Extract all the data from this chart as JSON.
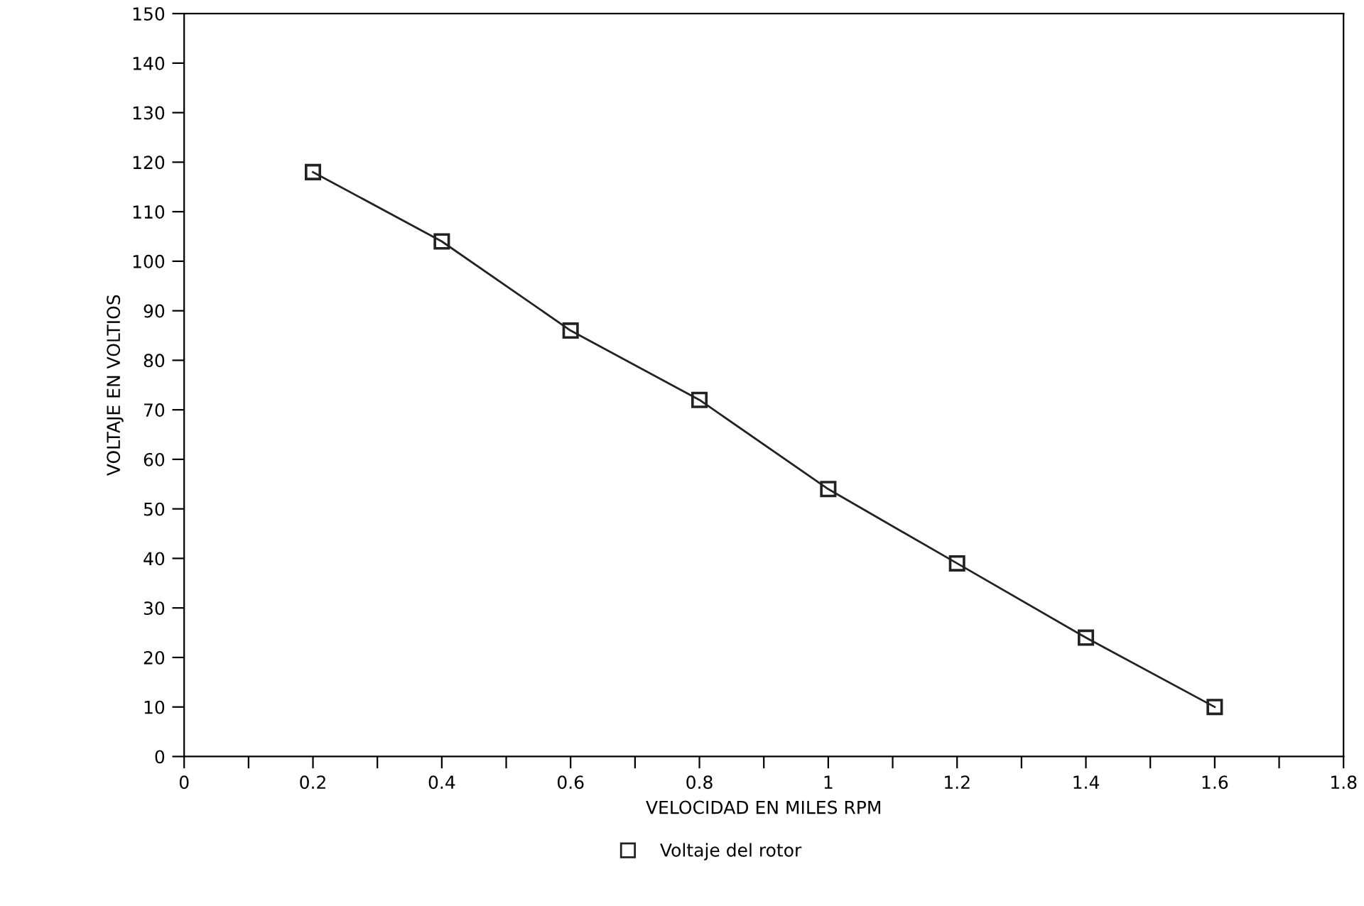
{
  "chart_data": {
    "type": "line",
    "xlabel": "VELOCIDAD EN MILES RPM",
    "ylabel": "VOLTAJE EN VOLTIOS",
    "x": [
      0.2,
      0.4,
      0.6,
      0.8,
      1.0,
      1.2,
      1.4,
      1.6
    ],
    "series": [
      {
        "name": "Voltaje del rotor",
        "color": "#222222",
        "values": [
          118,
          104,
          86,
          72,
          54,
          39,
          24,
          10
        ]
      }
    ],
    "xlim": [
      0,
      1.8
    ],
    "xticks": [
      0,
      {
        "value": 0.1,
        "label": null
      },
      0.2,
      {
        "value": 0.3,
        "label": null
      },
      0.4,
      {
        "value": 0.5,
        "label": null
      },
      0.6,
      {
        "value": 0.7,
        "label": null
      },
      0.8,
      {
        "value": 0.9,
        "label": null
      },
      1,
      {
        "value": 1.1,
        "label": null
      },
      1.2,
      {
        "value": 1.3,
        "label": null
      },
      1.4,
      {
        "value": 1.5,
        "label": null
      },
      1.6,
      {
        "value": 1.7,
        "label": null
      },
      1.8
    ],
    "ylim": [
      0,
      150
    ],
    "yticks": [
      0,
      10,
      20,
      30,
      40,
      50,
      60,
      70,
      80,
      90,
      100,
      110,
      120,
      130,
      140,
      150
    ],
    "marker": "square",
    "line_style": "solid",
    "grid": false,
    "legend": "bottom"
  }
}
